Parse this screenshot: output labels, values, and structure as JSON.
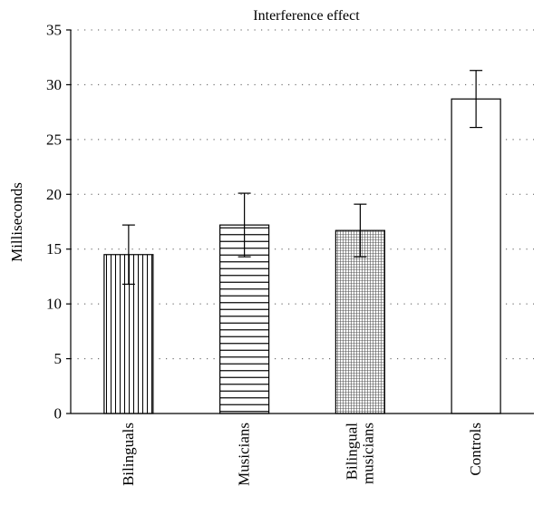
{
  "chart_data": {
    "type": "bar",
    "title": "Interference effect",
    "xlabel": "",
    "ylabel": "Milliseconds",
    "ylim": [
      0,
      35
    ],
    "yticks": [
      0,
      5,
      10,
      15,
      20,
      25,
      30,
      35
    ],
    "grid": true,
    "categories": [
      "Bilinguals",
      "Musicians",
      "Bilingual musicians",
      "Controls"
    ],
    "category_lines": [
      [
        "Bilinguals"
      ],
      [
        "Musicians"
      ],
      [
        "Bilingual",
        "musicians"
      ],
      [
        "Controls"
      ]
    ],
    "values": [
      14.5,
      17.2,
      16.7,
      28.7
    ],
    "error": [
      2.7,
      2.9,
      2.4,
      2.6
    ],
    "patterns": [
      "vertical-lines",
      "horizontal-lines",
      "crosshatch",
      "none"
    ],
    "colors": {
      "bar_stroke": "#000000",
      "bar_fill": "#ffffff",
      "grid": "#555555"
    }
  }
}
